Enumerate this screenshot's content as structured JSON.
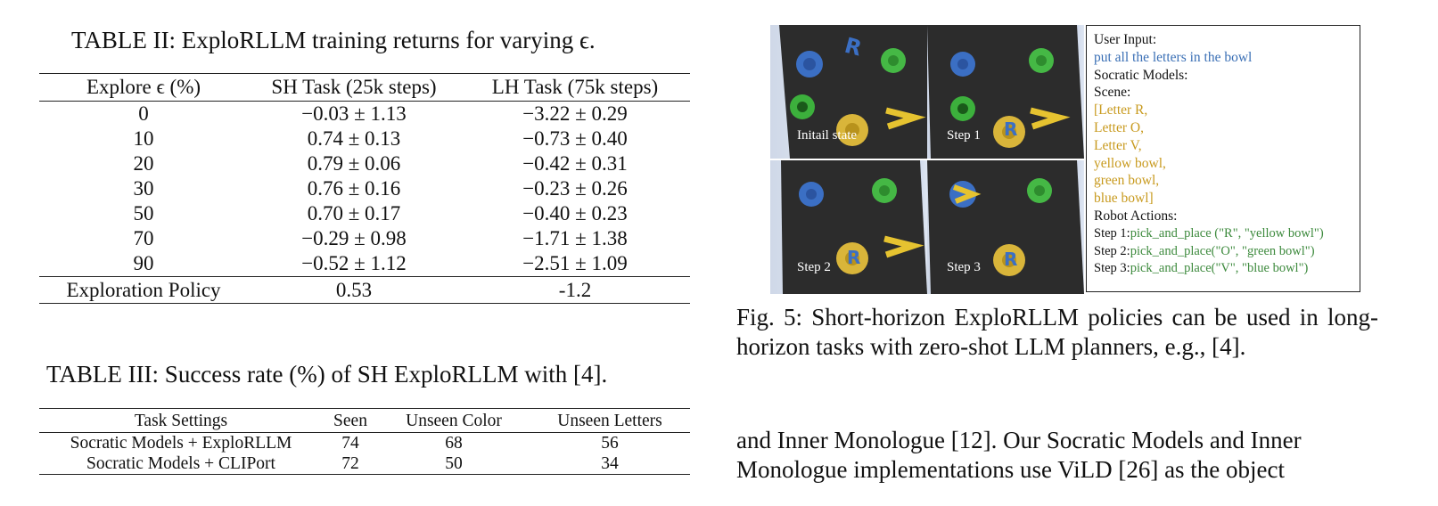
{
  "table2": {
    "caption": "TABLE II: ExploRLLM training returns for varying ϵ.",
    "headers": [
      "Explore ϵ (%)",
      "SH Task (25k steps)",
      "LH Task (75k steps)"
    ],
    "rows": [
      [
        "0",
        "−0.03 ± 1.13",
        "−3.22 ± 0.29"
      ],
      [
        "10",
        "0.74 ± 0.13",
        "−0.73 ± 0.40"
      ],
      [
        "20",
        "0.79 ± 0.06",
        "−0.42 ± 0.31"
      ],
      [
        "30",
        "0.76 ± 0.16",
        "−0.23 ± 0.26"
      ],
      [
        "50",
        "0.70 ± 0.17",
        "−0.40 ± 0.23"
      ],
      [
        "70",
        "−0.29 ± 0.98",
        "−1.71 ± 1.38"
      ],
      [
        "90",
        "−0.52 ± 1.12",
        "−2.51 ± 1.09"
      ]
    ],
    "footer": [
      "Exploration Policy",
      "0.53",
      "-1.2"
    ]
  },
  "table3": {
    "caption": "TABLE III: Success rate (%) of SH ExploRLLM with [4].",
    "headers": [
      "Task Settings",
      "Seen",
      "Unseen Color",
      "Unseen Letters"
    ],
    "rows": [
      [
        "Socratic Models + ExploRLLM",
        "74",
        "68",
        "56"
      ],
      [
        "Socratic Models + CLIPort",
        "72",
        "50",
        "34"
      ]
    ]
  },
  "figure": {
    "step_labels": [
      "Initail state",
      "Step 1",
      "Step 2",
      "Step 3"
    ],
    "panel": {
      "user_input_label": "User Input:",
      "user_input": "put all the letters in the bowl",
      "socratic_label": "Socratic Models:",
      "scene_label": "Scene:",
      "scene_items": [
        "[Letter R,",
        "Letter O,",
        "Letter V,",
        "yellow bowl,",
        "green bowl,",
        "blue bowl]"
      ],
      "actions_label": "Robot Actions:",
      "actions": [
        {
          "step": "Step 1:",
          "call": "pick_and_place (\"R\", \"yellow bowl\")"
        },
        {
          "step": "Step 2:",
          "call": "pick_and_place(\"O\", \"green bowl\")"
        },
        {
          "step": "Step 3:",
          "call": "pick_and_place(\"V\", \"blue bowl\")"
        }
      ]
    },
    "colors": {
      "blue_text": "#3a6fb5",
      "gold_text": "#c89a1e",
      "green_text": "#3d8a3d"
    }
  },
  "fig_caption": "Fig. 5: Short-horizon ExploRLLM policies can be used in long-horizon tasks with zero-shot LLM planners, e.g., [4].",
  "body_text": {
    "line1": "and Inner Monologue [12]. Our Socratic Models and Inner",
    "line2": "Monologue implementations use ViLD [26] as the object"
  }
}
